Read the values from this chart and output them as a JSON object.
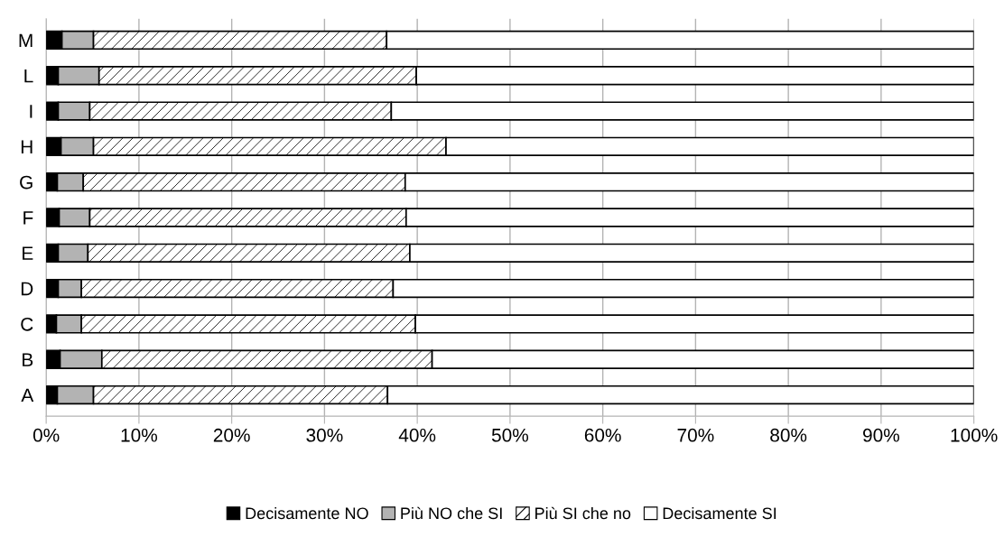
{
  "chart_data": {
    "type": "bar",
    "orientation": "horizontal",
    "stacked": true,
    "categories": [
      "M",
      "L",
      "I",
      "H",
      "G",
      "F",
      "E",
      "D",
      "C",
      "B",
      "A"
    ],
    "series": [
      {
        "name": "Decisamente NO",
        "color": "#000000",
        "values": [
          1.7,
          1.3,
          1.3,
          1.6,
          1.2,
          1.4,
          1.3,
          1.3,
          1.1,
          1.5,
          1.2
        ]
      },
      {
        "name": "Più NO che SI",
        "color": "#b3b3b3",
        "values": [
          3.4,
          4.4,
          3.4,
          3.5,
          2.8,
          3.3,
          3.2,
          2.5,
          2.7,
          4.5,
          3.9
        ]
      },
      {
        "name": "Più SI che no",
        "color": "#ffffff",
        "values": [
          31.6,
          34.2,
          32.5,
          38.0,
          34.7,
          34.1,
          34.7,
          33.6,
          36.0,
          35.6,
          31.7
        ]
      },
      {
        "name": "Decisamente SI",
        "color": "#ffffff",
        "values": [
          63.3,
          60.1,
          62.8,
          56.9,
          61.3,
          61.2,
          60.8,
          62.6,
          60.2,
          58.4,
          63.2
        ]
      }
    ],
    "xlim": [
      0,
      100
    ],
    "xticks": [
      {
        "value": 0,
        "label": "0%"
      },
      {
        "value": 10,
        "label": "10%"
      },
      {
        "value": 20,
        "label": "20%"
      },
      {
        "value": 30,
        "label": "30%"
      },
      {
        "value": 40,
        "label": "40%"
      },
      {
        "value": 50,
        "label": "50%"
      },
      {
        "value": 60,
        "label": "60%"
      },
      {
        "value": 70,
        "label": "70%"
      },
      {
        "value": 80,
        "label": "80%"
      },
      {
        "value": 90,
        "label": "90%"
      },
      {
        "value": 100,
        "label": "100%"
      }
    ],
    "grid": "x",
    "legend": "bottom"
  }
}
